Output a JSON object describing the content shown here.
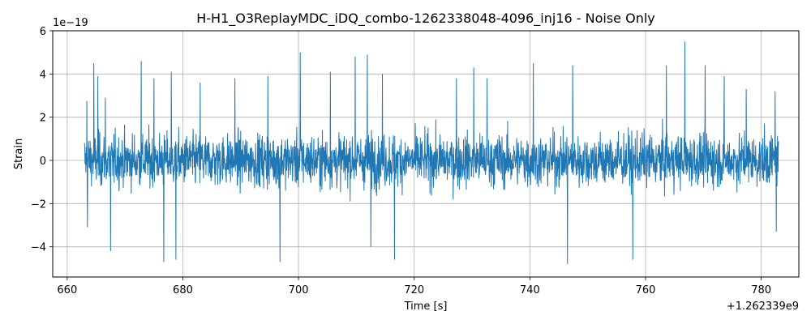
{
  "chart_data": {
    "type": "line",
    "title": "H-H1_O3ReplayMDC_iDQ_combo-1262338048-4096_inj16 - Noise Only",
    "xlabel": "Time [s]",
    "ylabel": "Strain",
    "x_offset_label": "+1.262339e9",
    "y_scale_label": "1e−19",
    "xlim": [
      657.5,
      786.5
    ],
    "ylim": [
      -5.4,
      6.0
    ],
    "x_ticks": [
      660,
      680,
      700,
      720,
      740,
      760,
      780
    ],
    "x_tick_labels": [
      "660",
      "680",
      "700",
      "720",
      "740",
      "760",
      "780"
    ],
    "y_ticks": [
      -4,
      -2,
      0,
      2,
      4,
      6
    ],
    "y_tick_labels": [
      "−4",
      "−2",
      "0",
      "2",
      "4",
      "6"
    ],
    "grid": true,
    "series": [
      {
        "color": "#1f77b4",
        "x_range": [
          663.0,
          783.0
        ],
        "typical_amplitude": [
          -2.6,
          2.9
        ],
        "spikes": [
          {
            "x": 663.4,
            "y": 2.75
          },
          {
            "x": 663.5,
            "y": -3.1
          },
          {
            "x": 664.6,
            "y": 4.5
          },
          {
            "x": 665.3,
            "y": 3.9
          },
          {
            "x": 666.6,
            "y": 2.9
          },
          {
            "x": 667.5,
            "y": -4.2
          },
          {
            "x": 672.8,
            "y": 4.6
          },
          {
            "x": 675.0,
            "y": 3.8
          },
          {
            "x": 676.7,
            "y": -4.7
          },
          {
            "x": 678.0,
            "y": 4.1
          },
          {
            "x": 678.8,
            "y": -4.6
          },
          {
            "x": 683.0,
            "y": 3.6
          },
          {
            "x": 689.0,
            "y": 3.8
          },
          {
            "x": 694.7,
            "y": 3.9
          },
          {
            "x": 696.8,
            "y": -4.7
          },
          {
            "x": 700.3,
            "y": 5.0
          },
          {
            "x": 705.5,
            "y": 4.1
          },
          {
            "x": 709.8,
            "y": 4.8
          },
          {
            "x": 711.9,
            "y": 4.9
          },
          {
            "x": 712.5,
            "y": -4.0
          },
          {
            "x": 714.5,
            "y": 4.0
          },
          {
            "x": 716.6,
            "y": -4.6
          },
          {
            "x": 727.3,
            "y": 3.8
          },
          {
            "x": 730.3,
            "y": 4.3
          },
          {
            "x": 732.6,
            "y": 3.8
          },
          {
            "x": 740.6,
            "y": 4.5
          },
          {
            "x": 746.5,
            "y": -4.8
          },
          {
            "x": 747.4,
            "y": 4.4
          },
          {
            "x": 757.8,
            "y": -4.6
          },
          {
            "x": 763.6,
            "y": 4.4
          },
          {
            "x": 766.8,
            "y": 5.5
          },
          {
            "x": 770.3,
            "y": 4.4
          },
          {
            "x": 773.6,
            "y": 3.9
          },
          {
            "x": 777.4,
            "y": 3.3
          },
          {
            "x": 782.4,
            "y": 3.2
          },
          {
            "x": 782.6,
            "y": -3.3
          }
        ]
      }
    ]
  }
}
